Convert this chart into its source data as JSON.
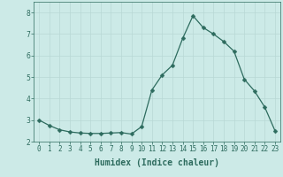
{
  "x": [
    0,
    1,
    2,
    3,
    4,
    5,
    6,
    7,
    8,
    9,
    10,
    11,
    12,
    13,
    14,
    15,
    16,
    17,
    18,
    19,
    20,
    21,
    22,
    23
  ],
  "y": [
    3.0,
    2.75,
    2.55,
    2.45,
    2.4,
    2.38,
    2.38,
    2.4,
    2.42,
    2.35,
    2.7,
    4.4,
    5.1,
    5.55,
    6.8,
    7.85,
    7.3,
    7.0,
    6.65,
    6.2,
    4.9,
    4.35,
    3.6,
    2.5
  ],
  "line_color": "#2d6b5e",
  "marker": "D",
  "marker_size": 2.5,
  "bg_color": "#cceae7",
  "grid_color": "#b8d8d5",
  "xlabel": "Humidex (Indice chaleur)",
  "xlim": [
    -0.5,
    23.5
  ],
  "ylim": [
    2.0,
    8.5
  ],
  "yticks": [
    2,
    3,
    4,
    5,
    6,
    7,
    8
  ],
  "xticks": [
    0,
    1,
    2,
    3,
    4,
    5,
    6,
    7,
    8,
    9,
    10,
    11,
    12,
    13,
    14,
    15,
    16,
    17,
    18,
    19,
    20,
    21,
    22,
    23
  ],
  "tick_fontsize": 5.5,
  "xlabel_fontsize": 7,
  "tick_color": "#2d6b5e",
  "label_color": "#2d6b5e"
}
